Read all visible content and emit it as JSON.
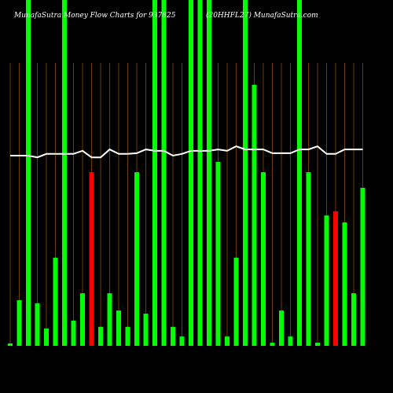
{
  "chart_data": {
    "type": "bar",
    "title": "MunafaSutra  Money Flow  Charts for 937825",
    "subtitle": "(20HHFL27) MunafaSutra.com",
    "categories": [
      null,
      null,
      null,
      null,
      null,
      null,
      null,
      null,
      null,
      null,
      null,
      null,
      null,
      null,
      null,
      null,
      null,
      null,
      null,
      null,
      null,
      null,
      null,
      null,
      null,
      null,
      null,
      null,
      null,
      null,
      null,
      null,
      null,
      null,
      null,
      null,
      null,
      null,
      null,
      null
    ],
    "values": [
      0.7,
      13.2,
      100,
      12.3,
      5,
      25.5,
      100,
      7.3,
      15.2,
      50.2,
      5.5,
      15.2,
      10.2,
      5.5,
      50.2,
      9.3,
      100,
      100,
      5.5,
      2.7,
      100,
      100,
      100,
      53.2,
      2.7,
      25.5,
      100,
      75.5,
      50.2,
      0.9,
      10.2,
      2.7,
      100,
      50.2,
      0.9,
      37.7,
      38.9,
      35.7,
      15.2,
      45.7
    ],
    "colors": [
      "#00ff00",
      "#00ff00",
      "#00ff00",
      "#00ff00",
      "#00ff00",
      "#00ff00",
      "#00ff00",
      "#00ff00",
      "#00ff00",
      "#ff0000",
      "#00ff00",
      "#00ff00",
      "#00ff00",
      "#00ff00",
      "#00ff00",
      "#00ff00",
      "#00ff00",
      "#00ff00",
      "#00ff00",
      "#00ff00",
      "#00ff00",
      "#00ff00",
      "#00ff00",
      "#00ff00",
      "#00ff00",
      "#00ff00",
      "#00ff00",
      "#00ff00",
      "#00ff00",
      "#00ff00",
      "#00ff00",
      "#00ff00",
      "#00ff00",
      "#00ff00",
      "#00ff00",
      "#00ff00",
      "#ff0000",
      "#00ff00",
      "#00ff00",
      "#00ff00"
    ],
    "line": {
      "color": "#ffffff",
      "values": [
        55,
        55,
        55,
        54.5,
        55.5,
        55.5,
        55.5,
        55.5,
        56.4,
        54.5,
        54.5,
        56.8,
        55.5,
        55.5,
        55.7,
        56.8,
        56.4,
        56.4,
        55,
        55.5,
        56.4,
        56.4,
        56.4,
        56.8,
        56.4,
        57.7,
        56.8,
        56.8,
        56.8,
        55.7,
        55.7,
        55.7,
        56.8,
        56.8,
        57.7,
        55.5,
        55.5,
        56.8,
        56.8,
        56.8
      ]
    },
    "ylim": [
      0,
      100
    ]
  }
}
